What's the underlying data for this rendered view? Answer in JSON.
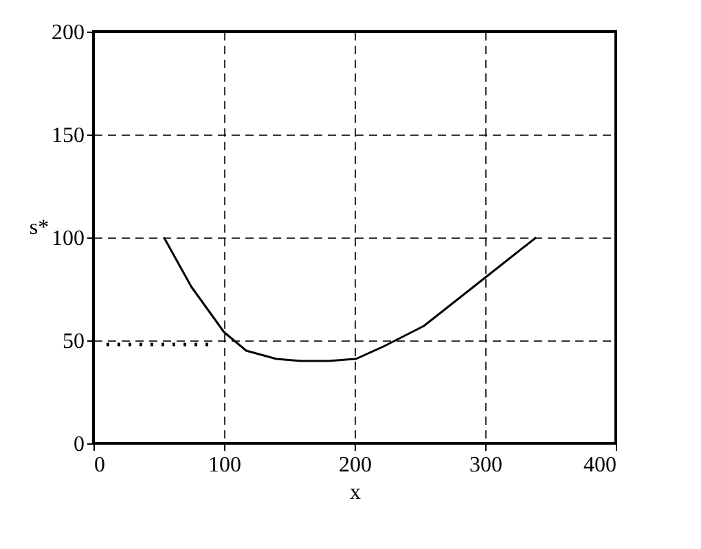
{
  "chart_data": {
    "type": "line",
    "xlabel": "x",
    "ylabel": "s*",
    "xlim": [
      0,
      400
    ],
    "ylim": [
      0,
      200
    ],
    "xticks": [
      0,
      100,
      200,
      300,
      400
    ],
    "yticks": [
      0,
      50,
      100,
      150,
      200
    ],
    "grid": true,
    "series": [
      {
        "color": "#000000",
        "line_style": "solid",
        "x": [
          54,
          75,
          100,
          117,
          140,
          159,
          180,
          201,
          222,
          253,
          285,
          311,
          339
        ],
        "values": [
          100,
          76,
          54,
          45,
          41,
          40,
          40,
          41,
          47,
          57,
          73,
          86,
          100
        ]
      },
      {
        "color": "#000000",
        "line_style": "dotted",
        "x": [
          10,
          30,
          50,
          70,
          90
        ],
        "values": [
          48,
          48,
          48,
          48,
          48
        ]
      }
    ]
  }
}
